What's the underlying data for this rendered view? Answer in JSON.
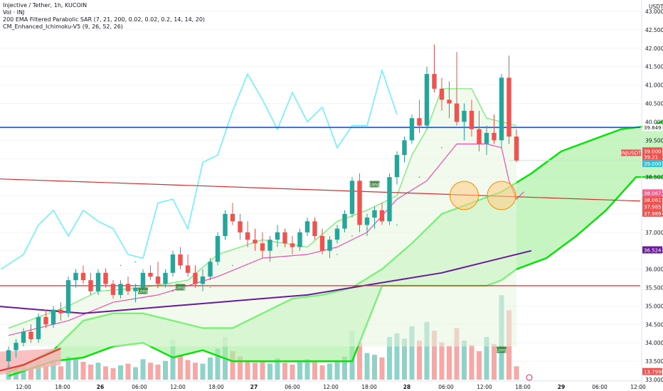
{
  "header": {
    "title": "Injective / Tether, 1h, KUCOIN",
    "volume_label": "Vol · INJ",
    "indicator_1": "200 EMA Filtered Parabolic SAR (7, 21, 200, 0.02, 0.02, 0.2, 14, 14, 20)",
    "indicator_2": "CM_Enhanced_Ichimoku-V5 (9, 26, 52, 26)"
  },
  "currency": "USDT",
  "colors": {
    "up": "#26a69a",
    "down": "#ef5350",
    "cloud_green": "#00e600",
    "cyan_line": "#66f2ff",
    "ema": "#6a1b9a",
    "blue_level": "#1e5bd8",
    "red_level": "#d32f2f"
  },
  "chart_data": {
    "type": "candlestick",
    "symbol": "INJUSDT",
    "exchange": "KUCOIN",
    "timeframe": "1h",
    "ylim": [
      33.0,
      43.0
    ],
    "y_ticks": [
      "43.000",
      "42.500",
      "42.000",
      "41.500",
      "41.000",
      "40.500",
      "40.000",
      "39.500",
      "39.000",
      "38.500",
      "38.000",
      "37.500",
      "37.000",
      "36.500",
      "36.000",
      "35.500",
      "35.000",
      "34.500",
      "34.000",
      "33.500",
      "33.000"
    ],
    "x_ticks": [
      "12:00",
      "18:00",
      "26",
      "06:00",
      "12:00",
      "18:00",
      "27",
      "06:00",
      "12:00",
      "18:00",
      "28",
      "06:00",
      "12:00",
      "18:00",
      "29",
      "06:00",
      "12:00"
    ],
    "price_tags": [
      {
        "text": "39.849",
        "price": 39.849,
        "color": "#ffffff",
        "text_color": "#131722"
      },
      {
        "text": "39.000",
        "price": 39.21,
        "color": "#ef5350",
        "text_color": "#ffffff"
      },
      {
        "text": "39.21",
        "price": 39.05,
        "color": "#ef5350",
        "text_color": "#ffffff"
      },
      {
        "text": "39.000",
        "price": 38.87,
        "color": "#26c6da",
        "text_color": "#ffffff"
      },
      {
        "text": "38.067",
        "price": 38.07,
        "color": "#f06292",
        "text_color": "#ffffff"
      },
      {
        "text": "38.061",
        "price": 37.88,
        "color": "#ef5350",
        "text_color": "#ffffff"
      },
      {
        "text": "37.985",
        "price": 37.7,
        "color": "#ef5350",
        "text_color": "#ffffff"
      },
      {
        "text": "37.989",
        "price": 37.52,
        "color": "#ef5350",
        "text_color": "#ffffff"
      },
      {
        "text": "36.524",
        "price": 36.524,
        "color": "#6a1b9a",
        "text_color": "#ffffff"
      },
      {
        "text": "13.799K",
        "price": 33.22,
        "color": "#ef5350",
        "text_color": "#ffffff"
      }
    ],
    "symbol_tag": "INJUSDT",
    "levels": [
      {
        "name": "resistance",
        "price": 39.849,
        "color": "#1e5bd8"
      },
      {
        "name": "support",
        "price": 35.55,
        "color": "#d32f2f"
      }
    ],
    "candles": [
      [
        33.5,
        33.9,
        33.3,
        33.8
      ],
      [
        33.8,
        34.1,
        33.6,
        34.0
      ],
      [
        34.0,
        34.4,
        33.9,
        34.3
      ],
      [
        34.3,
        34.5,
        34.0,
        34.1
      ],
      [
        34.1,
        34.8,
        34.0,
        34.7
      ],
      [
        34.7,
        34.9,
        34.4,
        34.5
      ],
      [
        34.5,
        35.0,
        34.4,
        34.9
      ],
      [
        34.9,
        35.1,
        34.6,
        34.8
      ],
      [
        34.8,
        35.8,
        34.7,
        35.7
      ],
      [
        35.7,
        36.0,
        35.5,
        35.9
      ],
      [
        35.9,
        36.1,
        35.6,
        35.7
      ],
      [
        35.7,
        35.9,
        35.3,
        35.4
      ],
      [
        35.4,
        36.0,
        35.3,
        35.9
      ],
      [
        35.9,
        36.0,
        35.5,
        35.6
      ],
      [
        35.6,
        35.7,
        35.2,
        35.3
      ],
      [
        35.3,
        35.7,
        35.2,
        35.6
      ],
      [
        35.6,
        35.8,
        35.3,
        35.4
      ],
      [
        35.4,
        35.6,
        35.1,
        35.5
      ],
      [
        35.5,
        36.0,
        35.4,
        35.9
      ],
      [
        35.9,
        36.1,
        35.7,
        35.8
      ],
      [
        35.8,
        36.2,
        35.5,
        35.6
      ],
      [
        35.6,
        36.0,
        35.5,
        35.9
      ],
      [
        35.9,
        36.5,
        35.8,
        36.4
      ],
      [
        36.4,
        36.6,
        36.0,
        36.1
      ],
      [
        36.1,
        36.4,
        35.8,
        35.9
      ],
      [
        35.9,
        36.1,
        35.5,
        35.6
      ],
      [
        35.6,
        36.0,
        35.4,
        35.8
      ],
      [
        35.8,
        36.3,
        35.7,
        36.2
      ],
      [
        36.2,
        37.0,
        36.1,
        36.9
      ],
      [
        36.9,
        37.6,
        36.8,
        37.5
      ],
      [
        37.5,
        37.8,
        37.2,
        37.3
      ],
      [
        37.3,
        37.5,
        36.8,
        37.0
      ],
      [
        37.0,
        37.3,
        36.6,
        36.8
      ],
      [
        36.8,
        37.1,
        36.5,
        36.7
      ],
      [
        36.7,
        37.0,
        36.3,
        36.5
      ],
      [
        36.5,
        36.9,
        36.2,
        36.8
      ],
      [
        36.8,
        37.2,
        36.6,
        37.0
      ],
      [
        37.0,
        37.1,
        36.6,
        36.7
      ],
      [
        36.7,
        36.9,
        36.4,
        36.6
      ],
      [
        36.6,
        37.1,
        36.5,
        37.0
      ],
      [
        37.0,
        37.4,
        36.9,
        37.3
      ],
      [
        37.3,
        37.4,
        36.8,
        36.9
      ],
      [
        36.9,
        37.1,
        36.4,
        36.5
      ],
      [
        36.5,
        36.9,
        36.3,
        36.8
      ],
      [
        36.8,
        37.2,
        36.7,
        37.1
      ],
      [
        37.1,
        37.6,
        37.0,
        37.5
      ],
      [
        37.5,
        38.5,
        37.4,
        38.4
      ],
      [
        38.4,
        38.6,
        37.0,
        37.2
      ],
      [
        37.2,
        37.5,
        36.9,
        37.4
      ],
      [
        37.4,
        37.7,
        37.1,
        37.6
      ],
      [
        37.6,
        37.8,
        37.2,
        37.3
      ],
      [
        37.3,
        38.6,
        37.2,
        38.5
      ],
      [
        38.5,
        39.2,
        38.3,
        39.1
      ],
      [
        39.1,
        39.6,
        38.9,
        39.5
      ],
      [
        39.5,
        40.2,
        39.4,
        40.1
      ],
      [
        40.1,
        40.6,
        39.7,
        39.9
      ],
      [
        39.9,
        41.5,
        39.8,
        41.3
      ],
      [
        41.3,
        42.1,
        40.8,
        40.9
      ],
      [
        40.9,
        41.2,
        40.3,
        40.6
      ],
      [
        40.6,
        41.1,
        40.1,
        40.5
      ],
      [
        40.5,
        41.9,
        39.9,
        40.0
      ],
      [
        40.0,
        40.5,
        39.5,
        40.3
      ],
      [
        40.3,
        40.6,
        39.6,
        39.8
      ],
      [
        39.8,
        40.3,
        39.2,
        39.4
      ],
      [
        39.4,
        39.9,
        39.1,
        39.7
      ],
      [
        39.7,
        40.2,
        39.4,
        39.5
      ],
      [
        39.5,
        41.3,
        39.3,
        41.2
      ],
      [
        41.2,
        41.8,
        39.4,
        39.6
      ],
      [
        39.6,
        39.8,
        38.9,
        38.95
      ]
    ],
    "volumes": [
      1.6,
      1.4,
      1.8,
      1.3,
      2.0,
      1.6,
      2.2,
      1.5,
      2.6,
      2.4,
      2.0,
      1.7,
      1.9,
      1.5,
      1.3,
      1.6,
      1.8,
      1.4,
      2.3,
      1.9,
      1.7,
      2.1,
      4.5,
      2.8,
      2.2,
      1.9,
      1.8,
      2.5,
      3.5,
      4.8,
      3.2,
      2.6,
      2.2,
      1.9,
      2.1,
      1.8,
      2.4,
      1.9,
      1.7,
      2.0,
      2.3,
      2.1,
      1.6,
      1.8,
      2.2,
      2.6,
      5.5,
      4.2,
      3.0,
      2.8,
      2.5,
      4.8,
      5.2,
      4.6,
      6.0,
      4.4,
      6.5,
      5.5,
      4.2,
      3.8,
      5.8,
      4.4,
      3.9,
      3.2,
      4.8,
      4.0,
      9.5,
      7.8,
      1.5
    ],
    "series": [
      {
        "name": "Conversion Line"
      },
      {
        "name": "Base Line"
      },
      {
        "name": "Lagging Span"
      },
      {
        "name": "200 EMA"
      },
      {
        "name": "Parabolic SAR"
      },
      {
        "name": "Leading Span A"
      },
      {
        "name": "Leading Span B"
      }
    ],
    "annotations": [
      "Long",
      "Long",
      "Long",
      "Long"
    ]
  }
}
